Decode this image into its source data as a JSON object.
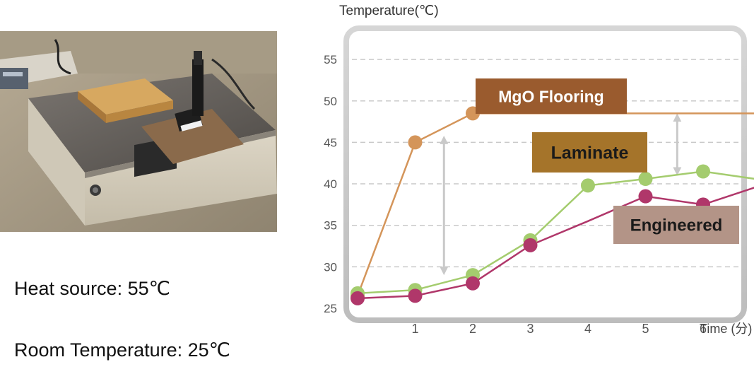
{
  "captions": {
    "heat_source": "Heat source: 55℃",
    "room_temperature": "Room Temperature: 25℃"
  },
  "chart_data": {
    "type": "line",
    "ylabel": "Temperature(℃)",
    "xlabel": "Time (分)",
    "x": [
      0,
      1,
      2,
      3,
      4,
      5,
      6,
      7
    ],
    "x_tick_labels": [
      "1",
      "2",
      "3",
      "4",
      "5",
      "6"
    ],
    "y_ticks": [
      25,
      30,
      35,
      40,
      45,
      50,
      55
    ],
    "ylim": [
      25,
      55
    ],
    "grid": "horizontal dashed",
    "series": [
      {
        "name": "MgO Flooring",
        "color": "#d4955a",
        "label_bg": "#9a5b2e",
        "values": [
          26.5,
          45,
          48.5,
          48.5,
          48.5,
          48.5,
          48.5,
          48.5
        ],
        "markers": [
          0,
          1,
          2
        ]
      },
      {
        "name": "Laminate",
        "color": "#a4cc6e",
        "label_bg": "#a5742a",
        "values": [
          26.8,
          27.2,
          29.0,
          33.2,
          39.8,
          40.6,
          41.5,
          40.5
        ],
        "markers": [
          0,
          1,
          2,
          3,
          4,
          5,
          6
        ]
      },
      {
        "name": "Engineered",
        "color": "#b0376a",
        "label_bg": "#b39487",
        "values": [
          26.2,
          26.5,
          28.0,
          32.6,
          35.5,
          38.5,
          37.5,
          39.8
        ],
        "markers": [
          0,
          1,
          2,
          3,
          5,
          6
        ]
      }
    ]
  }
}
